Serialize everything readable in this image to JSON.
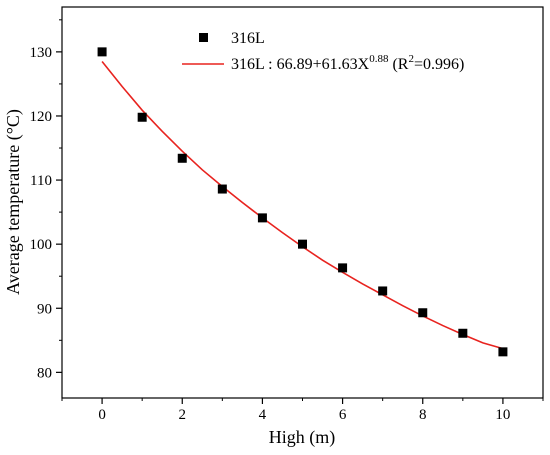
{
  "chart_data": {
    "type": "scatter",
    "title": "",
    "xlabel": "High (m)",
    "ylabel": "Average temperature (°C)",
    "xlim": [
      -1,
      11
    ],
    "ylim": [
      76,
      137
    ],
    "x_ticks": [
      0,
      2,
      4,
      6,
      8,
      10
    ],
    "y_ticks": [
      80,
      90,
      100,
      110,
      120,
      130
    ],
    "x_tick_labels": [
      "0",
      "2",
      "4",
      "6",
      "8",
      "10"
    ],
    "y_tick_labels": [
      "80",
      "90",
      "100",
      "110",
      "120",
      "130"
    ],
    "grid": false,
    "legend_position": "top-right",
    "series": [
      {
        "name": "316L",
        "kind": "scatter",
        "marker": "square",
        "color": "#000000",
        "x": [
          0,
          1,
          2,
          3,
          4,
          5,
          6,
          7,
          8,
          9,
          10
        ],
        "y": [
          130.0,
          119.8,
          113.4,
          108.6,
          104.1,
          100.0,
          96.3,
          92.7,
          89.3,
          86.1,
          83.2
        ]
      },
      {
        "name": "316L : 66.89+61.63X",
        "name_exp": "0.88",
        "name_tail_prefix": " (R",
        "name_tail_exp": "2",
        "name_tail_suffix": "=0.996)",
        "kind": "line",
        "color": "#e8231f",
        "fit": {
          "form": "power",
          "a": 66.89,
          "b": 61.63,
          "c": 0.88,
          "r2": 0.996
        },
        "x": [
          0,
          0.5,
          1,
          1.5,
          2,
          2.5,
          3,
          3.5,
          4,
          4.5,
          5,
          5.5,
          6,
          6.5,
          7,
          7.5,
          8,
          8.5,
          9,
          9.5,
          10
        ],
        "y": [
          128.5,
          124.6,
          120.9,
          117.6,
          114.5,
          111.6,
          109.0,
          106.5,
          104.1,
          101.8,
          99.6,
          97.5,
          95.6,
          93.8,
          92.1,
          90.4,
          88.8,
          87.3,
          85.9,
          84.6,
          83.7
        ]
      }
    ]
  }
}
